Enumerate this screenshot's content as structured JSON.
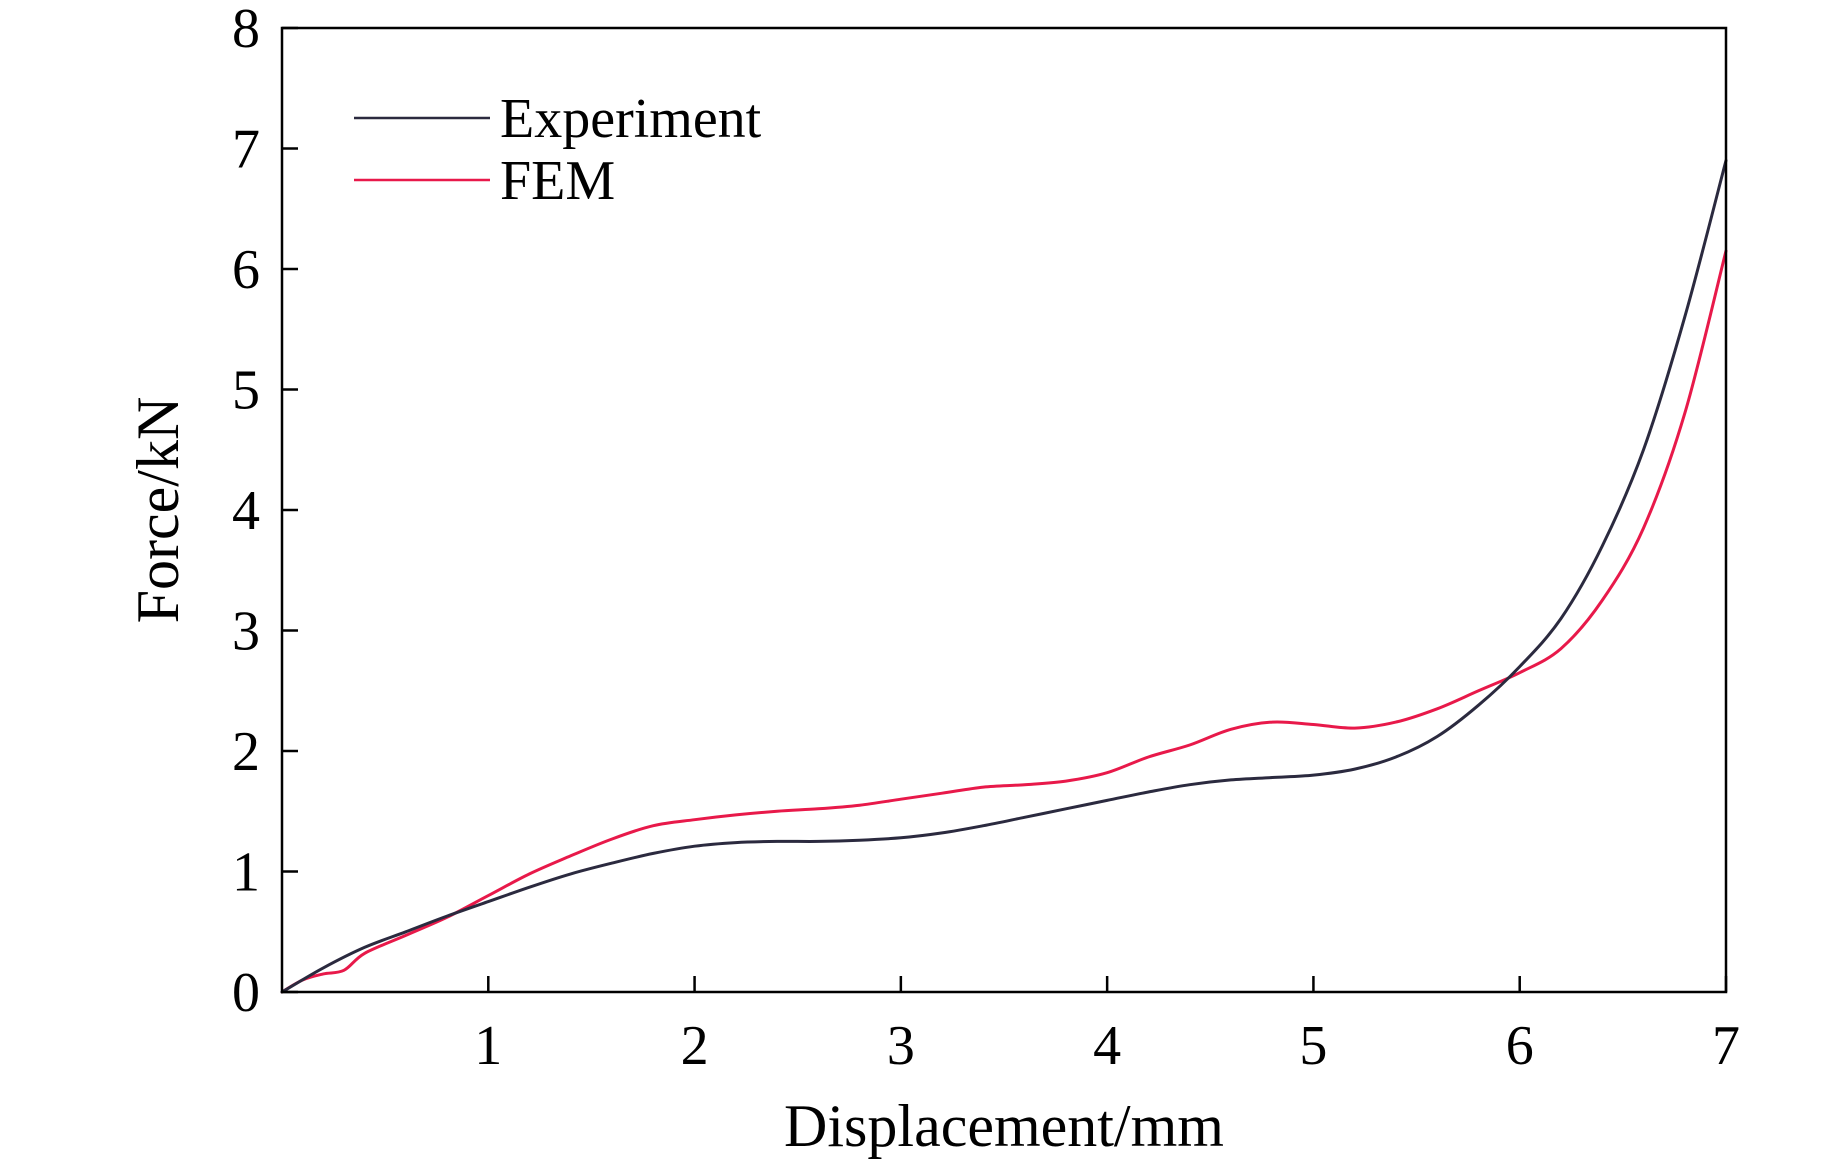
{
  "chart_data": {
    "type": "line",
    "xlabel": "Displacement/mm",
    "ylabel": "Force/kN",
    "xlim": [
      0,
      7
    ],
    "ylim": [
      0,
      8
    ],
    "xticks": [
      1,
      2,
      3,
      4,
      5,
      6,
      7
    ],
    "yticks": [
      0,
      1,
      2,
      3,
      4,
      5,
      6,
      7,
      8
    ],
    "grid": false,
    "legend_position": "top-left",
    "series": [
      {
        "name": "Experiment",
        "color": "#2b2a3f",
        "x": [
          0,
          0.2,
          0.4,
          0.6,
          0.8,
          1.0,
          1.2,
          1.4,
          1.6,
          1.8,
          2.0,
          2.2,
          2.4,
          2.6,
          2.8,
          3.0,
          3.2,
          3.4,
          3.6,
          3.8,
          4.0,
          4.2,
          4.4,
          4.6,
          4.8,
          5.0,
          5.2,
          5.4,
          5.6,
          5.8,
          6.0,
          6.2,
          6.4,
          6.6,
          6.8,
          7.0
        ],
        "y": [
          0,
          0.2,
          0.37,
          0.5,
          0.63,
          0.75,
          0.87,
          0.98,
          1.07,
          1.15,
          1.21,
          1.24,
          1.25,
          1.25,
          1.26,
          1.28,
          1.32,
          1.38,
          1.45,
          1.52,
          1.59,
          1.66,
          1.72,
          1.76,
          1.78,
          1.8,
          1.85,
          1.95,
          2.12,
          2.38,
          2.7,
          3.1,
          3.7,
          4.5,
          5.6,
          6.9
        ]
      },
      {
        "name": "FEM",
        "color": "#e8194a",
        "x": [
          0,
          0.1,
          0.2,
          0.3,
          0.4,
          0.6,
          0.8,
          1.0,
          1.2,
          1.4,
          1.6,
          1.8,
          2.0,
          2.2,
          2.4,
          2.6,
          2.8,
          3.0,
          3.2,
          3.4,
          3.6,
          3.8,
          4.0,
          4.2,
          4.4,
          4.6,
          4.8,
          5.0,
          5.2,
          5.4,
          5.6,
          5.8,
          6.0,
          6.2,
          6.4,
          6.6,
          6.8,
          7.0
        ],
        "y": [
          0,
          0.1,
          0.15,
          0.18,
          0.32,
          0.47,
          0.62,
          0.8,
          0.98,
          1.13,
          1.27,
          1.38,
          1.43,
          1.47,
          1.5,
          1.52,
          1.55,
          1.6,
          1.65,
          1.7,
          1.72,
          1.75,
          1.82,
          1.95,
          2.05,
          2.18,
          2.24,
          2.22,
          2.19,
          2.24,
          2.35,
          2.5,
          2.65,
          2.85,
          3.25,
          3.85,
          4.8,
          6.15
        ]
      }
    ]
  }
}
